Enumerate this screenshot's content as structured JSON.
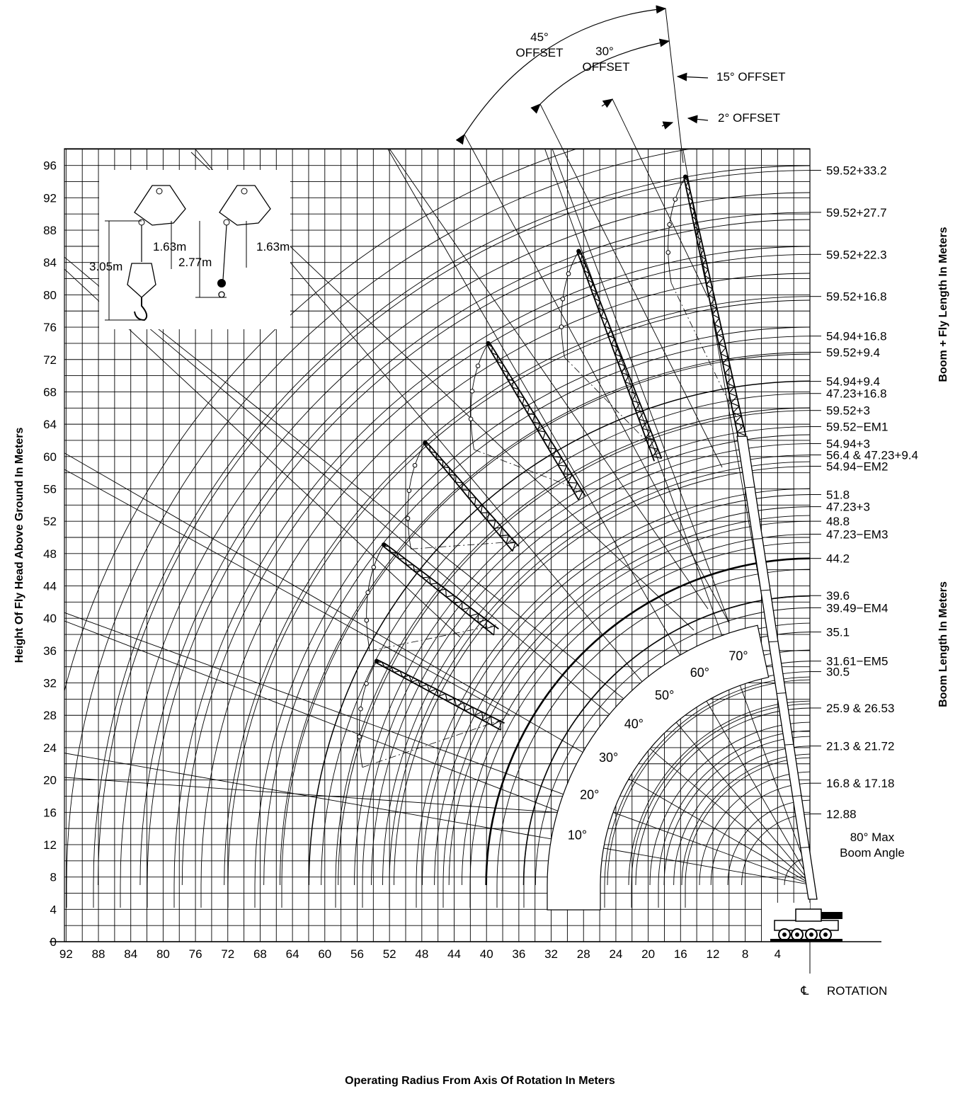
{
  "chart_data": {
    "type": "range-diagram",
    "xlabel": "Operating Radius From Axis Of Rotation In Meters",
    "ylabel": "Height Of Fly Head Above Ground In Meters",
    "right_label_top": "Boom + Fly Length In Meters",
    "right_label_bottom": "Boom Length In Meters",
    "rotation_label": "ROTATION",
    "centerline_symbol": "℄",
    "max_angle_label": [
      "80° Max",
      "Boom Angle"
    ],
    "x_ticks": [
      92,
      88,
      84,
      80,
      76,
      72,
      68,
      64,
      60,
      56,
      52,
      48,
      44,
      40,
      36,
      32,
      28,
      24,
      20,
      16,
      12,
      8,
      4
    ],
    "y_ticks": [
      0,
      4,
      8,
      12,
      16,
      20,
      24,
      28,
      32,
      36,
      40,
      44,
      48,
      52,
      56,
      60,
      64,
      68,
      72,
      76,
      80,
      84,
      88,
      92,
      96
    ],
    "xlim": [
      0,
      92
    ],
    "ylim": [
      0,
      96
    ],
    "boom_angles": [
      "10°",
      "20°",
      "30°",
      "40°",
      "50°",
      "60°",
      "70°"
    ],
    "offsets": [
      "45° OFFSET",
      "30° OFFSET",
      "15° OFFSET",
      "2° OFFSET"
    ],
    "boom_fly_lengths": [
      {
        "label": "59.52+33.2",
        "y": 95.4
      },
      {
        "label": "59.52+27.7",
        "y": 90.2
      },
      {
        "label": "59.52+22.3",
        "y": 85.0
      },
      {
        "label": "59.52+16.8",
        "y": 79.8
      },
      {
        "label": "54.94+16.8",
        "y": 74.9
      },
      {
        "label": "59.52+9.4",
        "y": 72.9
      },
      {
        "label": "54.94+9.4",
        "y": 69.3
      },
      {
        "label": "47.23+16.8",
        "y": 67.8
      },
      {
        "label": "59.52+3",
        "y": 65.7
      },
      {
        "label": "59.52−EM1",
        "y": 63.7
      },
      {
        "label": "54.94+3",
        "y": 61.6
      },
      {
        "label": "56.4 & 47.23+9.4",
        "y": 60.2
      },
      {
        "label": "54.94−EM2",
        "y": 58.8
      }
    ],
    "boom_lengths": [
      {
        "label": "51.8",
        "y": 55.3
      },
      {
        "label": "47.23+3",
        "y": 53.8
      },
      {
        "label": "48.8",
        "y": 52.0
      },
      {
        "label": "47.23−EM3",
        "y": 50.4
      },
      {
        "label": "44.2",
        "y": 47.4
      },
      {
        "label": "39.6",
        "y": 42.8
      },
      {
        "label": "39.49−EM4",
        "y": 41.3
      },
      {
        "label": "35.1",
        "y": 38.3
      },
      {
        "label": "31.61−EM5",
        "y": 34.7
      },
      {
        "label": "30.5",
        "y": 33.4
      },
      {
        "label": "25.9 & 26.53",
        "y": 28.9
      },
      {
        "label": "21.3 & 21.72",
        "y": 24.2
      },
      {
        "label": "16.8 & 17.18",
        "y": 19.6
      },
      {
        "label": "12.88",
        "y": 15.8
      }
    ],
    "fly_booms": [
      {
        "head": [
          15.4,
          94.6
        ],
        "base": [
          8.4,
          62.5
        ]
      },
      {
        "head": [
          28.6,
          85.4
        ],
        "base": [
          18.8,
          59.6
        ]
      },
      {
        "head": [
          39.8,
          74.0
        ],
        "base": [
          28.2,
          54.9
        ]
      },
      {
        "head": [
          47.6,
          61.7
        ],
        "base": [
          36.4,
          48.6
        ]
      },
      {
        "head": [
          52.7,
          49.1
        ],
        "base": [
          38.8,
          38.3
        ]
      },
      {
        "head": [
          53.6,
          34.7
        ],
        "base": [
          38.0,
          26.6
        ]
      }
    ],
    "hook_dims": [
      "3.05m",
      "1.63m",
      "2.77m",
      "1.63m"
    ]
  }
}
